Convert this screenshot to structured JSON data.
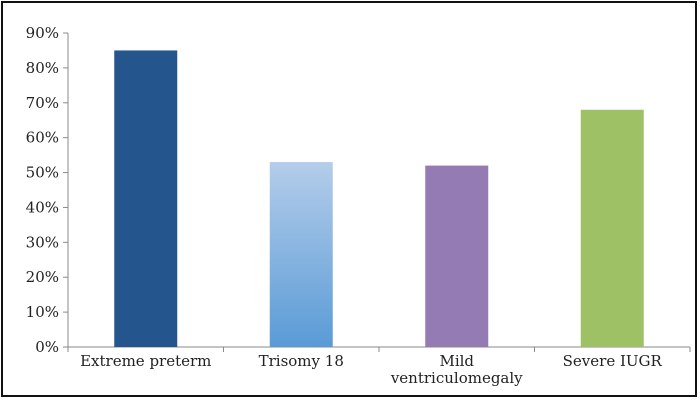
{
  "chart_data": {
    "type": "bar",
    "title": "",
    "xlabel": "",
    "ylabel": "",
    "categories": [
      "Extreme preterm",
      "Trisomy 18",
      "Mild ventriculomegaly",
      "Severe IUGR"
    ],
    "category_lines": [
      [
        "Extreme preterm"
      ],
      [
        "Trisomy 18"
      ],
      [
        "Mild",
        "ventriculomegaly"
      ],
      [
        "Severe IUGR"
      ]
    ],
    "values": [
      0.85,
      0.53,
      0.52,
      0.68
    ],
    "ylim": [
      0,
      0.9
    ],
    "yticks": [
      0,
      0.1,
      0.2,
      0.3,
      0.4,
      0.5,
      0.6,
      0.7,
      0.8,
      0.9
    ],
    "ytick_labels": [
      "0%",
      "10%",
      "20%",
      "30%",
      "40%",
      "50%",
      "60%",
      "70%",
      "80%",
      "90%"
    ],
    "grid": false,
    "legend": "none",
    "bar_colors": [
      {
        "top": "#24568d",
        "bottom": "#24568d"
      },
      {
        "top": "#b4cdea",
        "bottom": "#5a9bd6"
      },
      {
        "top": "#957bb4",
        "bottom": "#957bb4"
      },
      {
        "top": "#9fc166",
        "bottom": "#9fc166"
      }
    ]
  }
}
